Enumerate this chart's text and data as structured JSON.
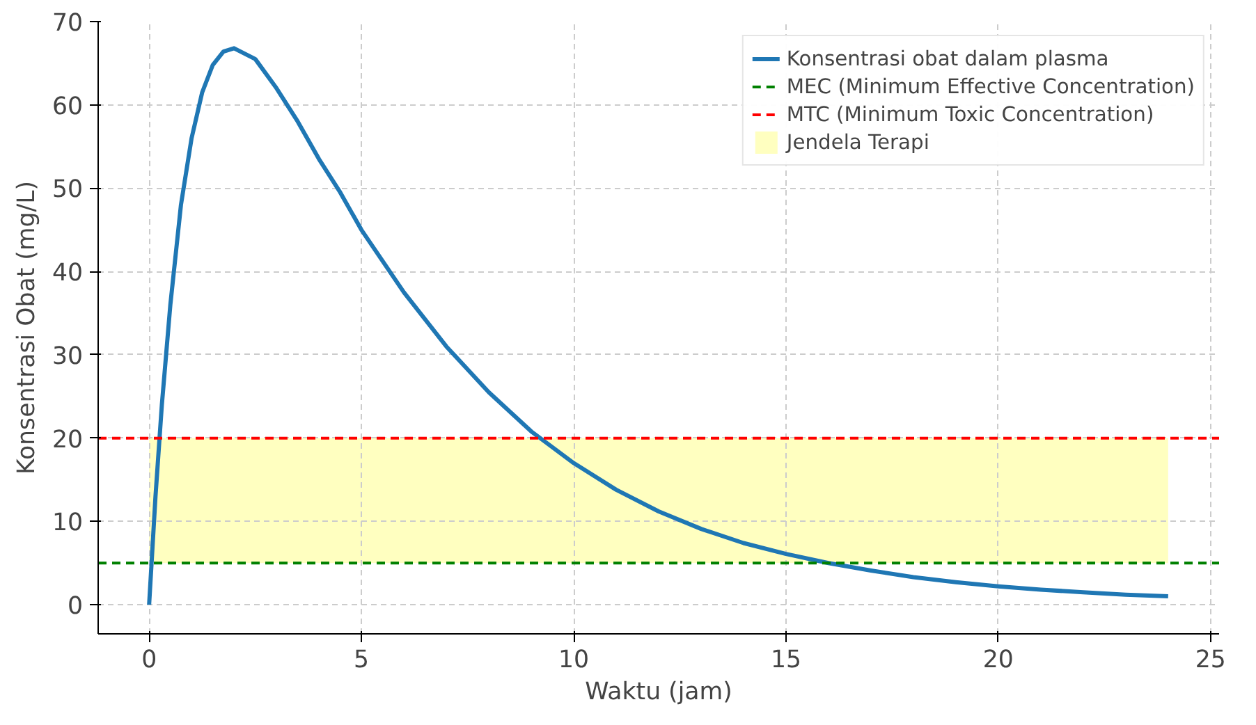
{
  "chart_data": {
    "type": "line",
    "xlabel": "Waktu (jam)",
    "ylabel": "Konsentrasi Obat (mg/L)",
    "x": [
      0,
      0.15,
      0.3,
      0.5,
      0.75,
      1,
      1.25,
      1.5,
      1.75,
      2,
      2.5,
      3,
      3.5,
      4,
      4.5,
      5,
      6,
      7,
      8,
      9,
      10,
      11,
      12,
      13,
      14,
      15,
      16,
      17,
      18,
      19,
      20,
      21,
      22,
      23,
      24
    ],
    "series": [
      {
        "name": "Konsentrasi obat dalam plasma",
        "color": "#1f77b4",
        "values": [
          0,
          13,
          24,
          36,
          48,
          56,
          61.5,
          64.8,
          66.4,
          66.8,
          65.5,
          62,
          58,
          53.5,
          49.5,
          45,
          37.5,
          31,
          25.5,
          20.8,
          17,
          13.8,
          11.2,
          9.1,
          7.4,
          6.1,
          5,
          4.1,
          3.3,
          2.7,
          2.2,
          1.8,
          1.5,
          1.2,
          1.0
        ]
      }
    ],
    "ref_lines": [
      {
        "axis": "y",
        "value": 5,
        "label": "MEC (Minimum Effective Concentration)",
        "color": "#008000",
        "line_style": "dashed"
      },
      {
        "axis": "y",
        "value": 20,
        "label": "MTC (Minimum Toxic Concentration)",
        "color": "#ff0000",
        "line_style": "dashed"
      }
    ],
    "bands": [
      {
        "axis": "y",
        "from": 5,
        "to": 20,
        "label": "Jendela Terapi",
        "color": "#ffffc0"
      }
    ],
    "xlim": [
      -1.2,
      25.2
    ],
    "ylim": [
      -3.5,
      70
    ],
    "xticks": [
      0,
      5,
      10,
      15,
      20,
      25
    ],
    "yticks": [
      0,
      10,
      20,
      30,
      40,
      50,
      60,
      70
    ],
    "grid": true,
    "legend": "top right",
    "line_style": "solid"
  }
}
